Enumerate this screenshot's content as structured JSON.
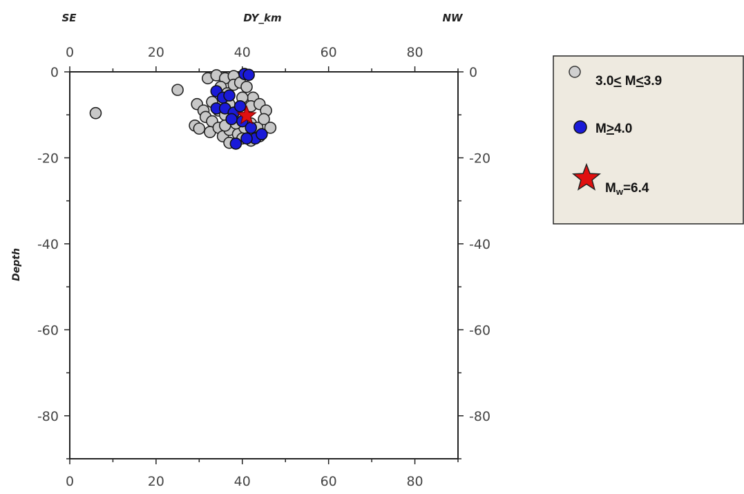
{
  "chart_data": {
    "type": "scatter",
    "header": {
      "left": "SE",
      "center": "DY_km",
      "right": "NW"
    },
    "ylabel": "Depth",
    "xlim": [
      0,
      90
    ],
    "ylim": [
      -90,
      0
    ],
    "x_ticks": [
      0,
      20,
      40,
      60,
      80
    ],
    "x_tick_labels": [
      "0",
      "20",
      "40",
      "60",
      "80"
    ],
    "y_ticks": [
      0,
      -20,
      -40,
      -60,
      -80
    ],
    "y_tick_labels": [
      "0",
      "-20",
      "-40",
      "-60",
      "-80"
    ],
    "grid": false,
    "legend_position": "right",
    "colors": {
      "small": "#c8c8c8",
      "large": "#1a1ad8",
      "mainshock": "#e01010"
    },
    "series": [
      {
        "key": "small",
        "label_prefix": "3.0",
        "label_middle": " M",
        "label_suffix": "3.9",
        "points": [
          [
            6,
            -9.6
          ],
          [
            25,
            -4.2
          ],
          [
            32,
            -1.5
          ],
          [
            34,
            -0.8
          ],
          [
            36,
            -1.5
          ],
          [
            38,
            -1
          ],
          [
            29.5,
            -7.5
          ],
          [
            31,
            -9
          ],
          [
            33,
            -7
          ],
          [
            35,
            -3.5
          ],
          [
            36.5,
            -5
          ],
          [
            38,
            -3
          ],
          [
            39.5,
            -2.5
          ],
          [
            41,
            -3.5
          ],
          [
            42.5,
            -6
          ],
          [
            31.5,
            -10.5
          ],
          [
            33,
            -11.5
          ],
          [
            34.5,
            -9
          ],
          [
            36,
            -10
          ],
          [
            37,
            -7.5
          ],
          [
            40,
            -6
          ],
          [
            42,
            -8
          ],
          [
            44,
            -7.5
          ],
          [
            45.5,
            -9
          ],
          [
            29,
            -12.5
          ],
          [
            30,
            -13.2
          ],
          [
            32.5,
            -14
          ],
          [
            34.5,
            -13
          ],
          [
            35.5,
            -15
          ],
          [
            37,
            -13.5
          ],
          [
            39,
            -14.5
          ],
          [
            40.5,
            -13
          ],
          [
            42,
            -12
          ],
          [
            43.5,
            -13
          ],
          [
            45,
            -11
          ],
          [
            46.5,
            -13
          ],
          [
            44,
            -15
          ],
          [
            42,
            -16
          ],
          [
            40,
            -15.5
          ],
          [
            37,
            -16.5
          ],
          [
            38.5,
            -12
          ],
          [
            36,
            -12.5
          ]
        ]
      },
      {
        "key": "large",
        "label_prefix": "M",
        "label_suffix": "4.0",
        "points": [
          [
            40.5,
            -0.5
          ],
          [
            41.5,
            -0.7
          ],
          [
            34,
            -4.5
          ],
          [
            35.5,
            -6
          ],
          [
            37,
            -5.5
          ],
          [
            34,
            -8.5
          ],
          [
            36,
            -8.5
          ],
          [
            38,
            -9.5
          ],
          [
            39.5,
            -8
          ],
          [
            37.5,
            -11
          ],
          [
            40,
            -11.5
          ],
          [
            42,
            -13
          ],
          [
            43,
            -15.5
          ],
          [
            41,
            -15.5
          ],
          [
            38.5,
            -16.7
          ],
          [
            44.5,
            -14.5
          ]
        ]
      },
      {
        "key": "mainshock",
        "label_main": "M",
        "label_sub": "w",
        "label_suffix": "=6.4",
        "points": [
          [
            41,
            -10.2
          ]
        ]
      }
    ]
  }
}
